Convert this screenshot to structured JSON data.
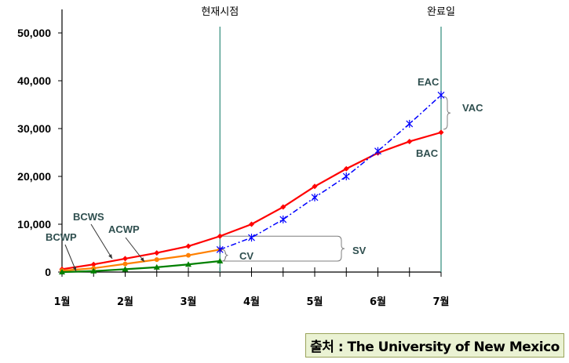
{
  "chart_data": {
    "type": "line",
    "x": [
      "1월",
      "1.5",
      "2월",
      "2.5",
      "3월",
      "3.5",
      "4월",
      "4.5",
      "5월",
      "5.5",
      "6월",
      "6.5",
      "7월"
    ],
    "xtick_labels": [
      "1월",
      "2월",
      "3월",
      "4월",
      "5월",
      "6월",
      "7월"
    ],
    "ytick_labels": [
      "0",
      "10,000",
      "20,000",
      "30,000",
      "40,000",
      "50,000"
    ],
    "ylim": [
      0,
      50000
    ],
    "xlim": [
      1,
      7
    ],
    "vertical_markers": [
      {
        "label": "현재시점",
        "x": 3.5
      },
      {
        "label": "완료일",
        "x": 7
      }
    ],
    "series": [
      {
        "name": "BCWS",
        "color": "#ff0000",
        "style": "solid",
        "marker": "diamond",
        "x": [
          1,
          1.5,
          2,
          2.5,
          3,
          3.5,
          4,
          4.5,
          5,
          5.5,
          6,
          6.5,
          7
        ],
        "values": [
          600,
          1600,
          2800,
          4000,
          5400,
          7500,
          10000,
          13600,
          17900,
          21600,
          24900,
          27300,
          29200
        ]
      },
      {
        "name": "ACWP",
        "color": "#ff8000",
        "style": "solid",
        "marker": "circle",
        "x": [
          1,
          1.5,
          2,
          2.5,
          3,
          3.5
        ],
        "values": [
          300,
          800,
          1700,
          2600,
          3500,
          4700
        ]
      },
      {
        "name": "BCWP",
        "color": "#008000",
        "style": "solid",
        "marker": "triangle",
        "x": [
          1,
          1.5,
          2,
          2.5,
          3,
          3.5
        ],
        "values": [
          0,
          200,
          600,
          1000,
          1600,
          2300
        ]
      },
      {
        "name": "EAC",
        "color": "#0000ff",
        "style": "dashdot",
        "marker": "star",
        "x": [
          3.5,
          4,
          4.5,
          5,
          5.5,
          6,
          6.5,
          7
        ],
        "values": [
          4700,
          7200,
          11000,
          15600,
          20000,
          25300,
          31000,
          37000
        ]
      }
    ],
    "annotations": {
      "bcws": "BCWS",
      "acwp": "ACWP",
      "bcwp": "BCWP",
      "eac": "EAC",
      "bac": "BAC",
      "vac": "VAC",
      "sv": "SV",
      "cv": "CV"
    },
    "grid": false
  },
  "source": "출처 : The University of New Mexico",
  "colors": {
    "axis": "#000000",
    "marker_line": "#2e8b7a",
    "bracket": "#7f7f7f",
    "source_bg": "#eaf2d3"
  }
}
